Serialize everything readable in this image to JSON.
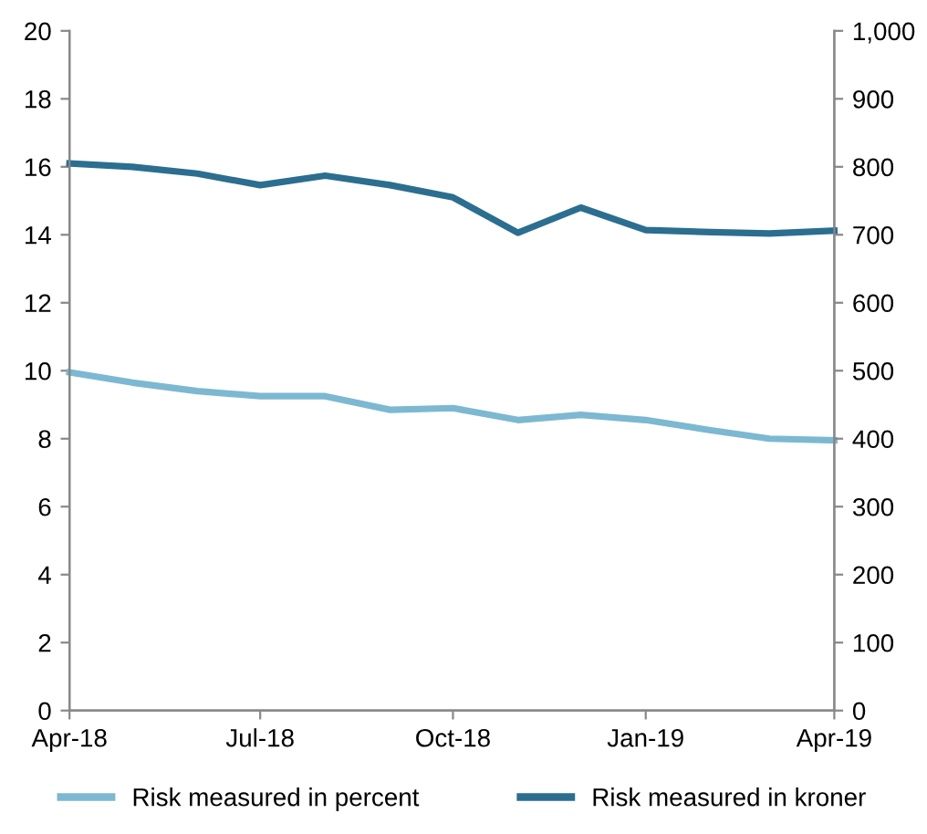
{
  "chart_data": {
    "type": "line",
    "x": [
      "2018-04",
      "2018-05",
      "2018-06",
      "2018-07",
      "2018-08",
      "2018-09",
      "2018-10",
      "2018-11",
      "2018-12",
      "2019-01",
      "2019-02",
      "2019-03",
      "2019-04"
    ],
    "series": [
      {
        "name": "Risk measured in percent",
        "color": "#7cb8d1",
        "values": [
          9.95,
          9.65,
          9.4,
          9.25,
          9.25,
          8.85,
          8.9,
          8.55,
          8.7,
          8.55,
          8.25,
          8.0,
          7.95
        ]
      },
      {
        "name": "Risk measured in kroner",
        "color": "#2b6e90",
        "axis": "y2",
        "values": [
          805,
          800,
          790,
          773,
          787,
          773,
          755,
          703,
          740,
          707,
          704,
          702,
          706
        ]
      }
    ],
    "xlim": [
      "2018-04",
      "2019-04"
    ],
    "xticks": [
      {
        "value": "2018-04",
        "label": "Apr-18"
      },
      {
        "value": "2018-07",
        "label": "Jul-18"
      },
      {
        "value": "2018-10",
        "label": "Oct-18"
      },
      {
        "value": "2019-01",
        "label": "Jan-19"
      },
      {
        "value": "2019-04",
        "label": "Apr-19"
      }
    ],
    "ylim": [
      0,
      20
    ],
    "yticks": [
      0,
      2,
      4,
      6,
      8,
      10,
      12,
      14,
      16,
      18,
      20
    ],
    "y2lim": [
      0,
      1000
    ],
    "y2ticks": [
      0,
      100,
      200,
      300,
      400,
      500,
      600,
      700,
      800,
      900,
      {
        "value": 1000,
        "label": "1,000"
      }
    ],
    "grid": false,
    "legend": "bottom",
    "marker": "none",
    "line_style": "solid"
  }
}
